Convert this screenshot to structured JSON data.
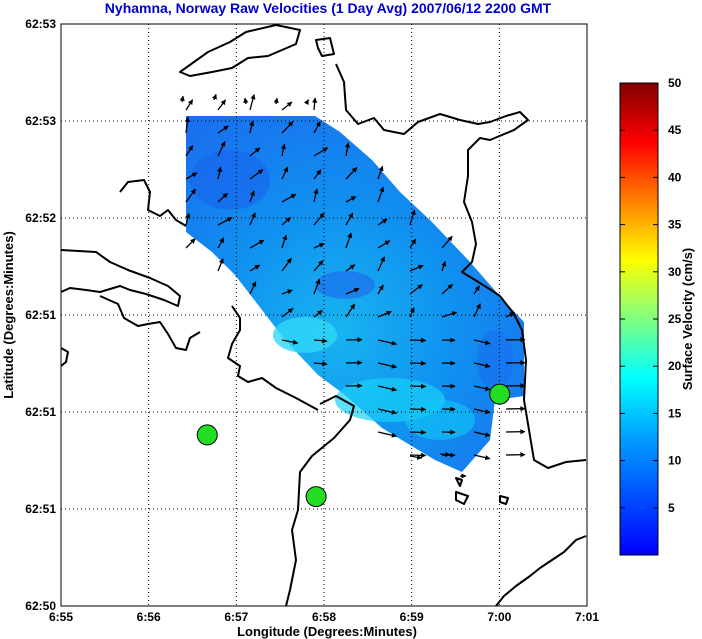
{
  "chart_data": {
    "type": "heatmap",
    "title": "Nyhamna, Norway Raw Velocities (1 Day Avg) 2007/06/12 2200 GMT",
    "xlabel": "Longitude (Degrees:Minutes)",
    "ylabel": "Latitude (Degrees:Minutes)",
    "x_ticks": [
      "6:55",
      "6:56",
      "6:57",
      "6:58",
      "6:59",
      "7:00",
      "7:01"
    ],
    "y_ticks": [
      "62:53",
      "62:53",
      "62:52",
      "62:51",
      "62:51",
      "62:51",
      "62:50"
    ],
    "xlim": [
      6.9167,
      7.0167
    ],
    "grid": true,
    "colorbar": {
      "label": "Surface Velocity (cm/s)",
      "ticks": [
        "5",
        "10",
        "15",
        "20",
        "25",
        "30",
        "35",
        "40",
        "45",
        "50"
      ],
      "range": [
        0,
        50
      ],
      "colormap": "jet"
    },
    "field_value_range_cm_s": [
      3,
      12
    ],
    "sites": [
      {
        "lon": 6.9445,
        "lat": 62.848
      },
      {
        "lon": 6.9652,
        "lat": 62.8427
      },
      {
        "lon": 7.0001,
        "lat": 62.8515
      }
    ],
    "vector_grid": {
      "lon": [
        6.9355,
        6.9417,
        6.948,
        6.9542,
        6.9605,
        6.9667,
        6.973,
        6.9792,
        6.9855,
        6.9917,
        6.998,
        7.0042
      ],
      "lat": [
        62.832,
        62.8357,
        62.8394,
        62.8431,
        62.8468,
        62.8505,
        62.8542,
        62.8579,
        62.8616,
        62.8653,
        62.869,
        62.8727,
        62.8764,
        62.8801
      ],
      "note_units": "u,v in cm/s"
    }
  }
}
